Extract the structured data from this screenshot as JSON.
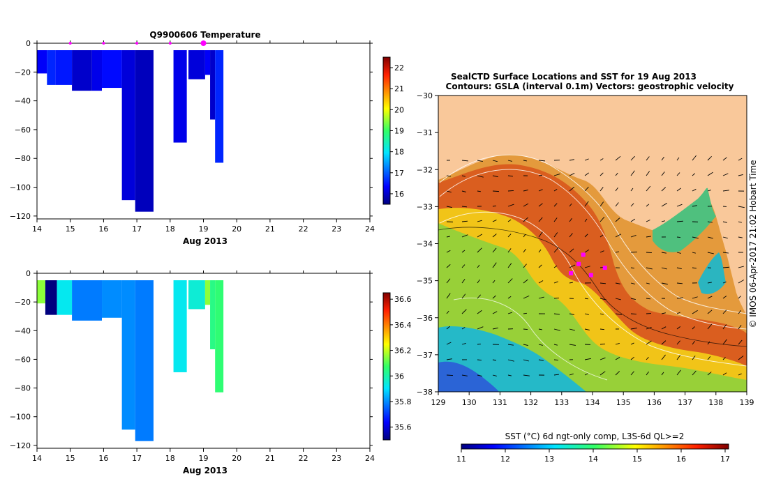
{
  "plot1": {
    "title": "Q9900606  Temperature",
    "xlabel": "Aug 2013",
    "x_ticks": [
      "14",
      "15",
      "16",
      "17",
      "18",
      "19",
      "20",
      "21",
      "22",
      "23",
      "24"
    ],
    "y_ticks": [
      "0",
      "−20",
      "−40",
      "−60",
      "−80",
      "−100",
      "−120"
    ],
    "cbar_ticks": [
      "22",
      "21",
      "20",
      "19",
      "18",
      "17",
      "16"
    ]
  },
  "plot2": {
    "xlabel": "Aug 2013",
    "x_ticks": [
      "14",
      "15",
      "16",
      "17",
      "18",
      "19",
      "20",
      "21",
      "22",
      "23",
      "24"
    ],
    "y_ticks": [
      "0",
      "−20",
      "−40",
      "−60",
      "−80",
      "−100",
      "−120"
    ],
    "cbar_ticks": [
      "36.6",
      "36.4",
      "36.2",
      "36",
      "35.8",
      "35.6"
    ]
  },
  "map": {
    "title_line1": "SealCTD Surface Locations and SST for 19 Aug 2013",
    "title_line2": "Contours: GSLA (interval 0.1m) Vectors: geostrophic velocity",
    "side_label": "©  IMOS 06-Apr-2017 21:02 Hobart Time",
    "x_ticks": [
      "129",
      "130",
      "131",
      "132",
      "133",
      "134",
      "135",
      "136",
      "137",
      "138",
      "139"
    ],
    "y_ticks": [
      "−30",
      "−31",
      "−32",
      "−33",
      "−34",
      "−35",
      "−36",
      "−37",
      "−38"
    ],
    "cbar_label": "SST (°C) 6d ngt-only comp, L3S-6d QL>=2",
    "cbar_ticks": [
      "11",
      "12",
      "13",
      "14",
      "15",
      "16",
      "17"
    ]
  },
  "colors": {
    "land": "#f9c89a",
    "marker": "#ff00ff"
  },
  "chart_data": [
    {
      "type": "heatmap",
      "title": "Q9900606  Temperature",
      "xlabel": "Aug 2013",
      "xlim": [
        14,
        24
      ],
      "ylim": [
        -122,
        0
      ],
      "colorbar_range": [
        15.5,
        22.5
      ],
      "profiles": [
        {
          "x0": 14.0,
          "x1": 14.3,
          "depth": 21,
          "value": 16.3
        },
        {
          "x0": 14.3,
          "x1": 14.55,
          "depth": 29,
          "value": 16.6
        },
        {
          "x0": 14.55,
          "x1": 15.05,
          "depth": 29,
          "value": 16.5
        },
        {
          "x0": 15.05,
          "x1": 15.65,
          "depth": 33,
          "value": 16.0
        },
        {
          "x0": 15.65,
          "x1": 15.95,
          "depth": 33,
          "value": 16.2
        },
        {
          "x0": 15.95,
          "x1": 16.55,
          "depth": 31,
          "value": 16.4
        },
        {
          "x0": 16.55,
          "x1": 16.95,
          "depth": 109,
          "value": 16.1
        },
        {
          "x0": 16.95,
          "x1": 17.5,
          "depth": 117,
          "value": 15.9
        },
        {
          "x0": 18.1,
          "x1": 18.5,
          "depth": 69,
          "value": 16.2
        },
        {
          "x0": 18.55,
          "x1": 19.05,
          "depth": 25,
          "value": 16.1
        },
        {
          "x0": 19.05,
          "x1": 19.2,
          "depth": 22,
          "value": 16.3
        },
        {
          "x0": 19.2,
          "x1": 19.35,
          "depth": 53,
          "value": 16.0
        },
        {
          "x0": 19.35,
          "x1": 19.6,
          "depth": 83,
          "value": 16.6
        }
      ],
      "markers_x": [
        15,
        16,
        17,
        18,
        19
      ]
    },
    {
      "type": "heatmap",
      "xlabel": "Aug 2013",
      "xlim": [
        14,
        24
      ],
      "ylim": [
        -122,
        0
      ],
      "colorbar_range": [
        35.5,
        36.65
      ],
      "profiles": [
        {
          "x0": 14.0,
          "x1": 14.25,
          "depth": 21,
          "value": 36.15
        },
        {
          "x0": 14.25,
          "x1": 14.6,
          "depth": 29,
          "value": 35.5
        },
        {
          "x0": 14.6,
          "x1": 15.05,
          "depth": 29,
          "value": 35.92
        },
        {
          "x0": 15.05,
          "x1": 15.95,
          "depth": 33,
          "value": 35.78
        },
        {
          "x0": 15.95,
          "x1": 16.55,
          "depth": 31,
          "value": 35.8
        },
        {
          "x0": 16.55,
          "x1": 16.95,
          "depth": 109,
          "value": 35.8
        },
        {
          "x0": 16.95,
          "x1": 17.5,
          "depth": 117,
          "value": 35.78
        },
        {
          "x0": 18.1,
          "x1": 18.5,
          "depth": 69,
          "value": 35.92
        },
        {
          "x0": 18.55,
          "x1": 19.05,
          "depth": 25,
          "value": 35.95
        },
        {
          "x0": 19.05,
          "x1": 19.2,
          "depth": 22,
          "value": 36.15
        },
        {
          "x0": 19.2,
          "x1": 19.35,
          "depth": 53,
          "value": 36.04
        },
        {
          "x0": 19.35,
          "x1": 19.6,
          "depth": 83,
          "value": 36.06
        }
      ]
    },
    {
      "type": "heatmap",
      "title": "SealCTD Surface Locations and SST for 19 Aug 2013",
      "subtitle": "Contours: GSLA (interval 0.1m) Vectors: geostrophic velocity",
      "xlim": [
        129,
        139
      ],
      "ylim": [
        -38,
        -30
      ],
      "colorbar_range": [
        11,
        17
      ],
      "colorbar_label": "SST (°C) 6d ngt-only comp, L3S-6d QL>=2",
      "ctd_locations": [
        {
          "lon": 133.55,
          "lat": -34.55
        },
        {
          "lon": 134.4,
          "lat": -34.65
        },
        {
          "lon": 133.7,
          "lat": -34.3
        },
        {
          "lon": 133.3,
          "lat": -34.8
        },
        {
          "lon": 133.95,
          "lat": -34.85
        }
      ]
    }
  ]
}
